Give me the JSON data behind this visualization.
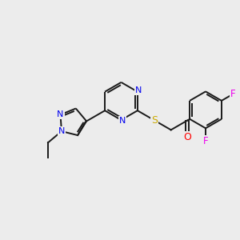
{
  "background_color": "#ececec",
  "bond_color": "#1a1a1a",
  "atom_colors": {
    "N": "#0000ee",
    "O": "#ff0000",
    "S": "#ccaa00",
    "F": "#ee00ee",
    "C": "#1a1a1a"
  },
  "figsize": [
    3.0,
    3.0
  ],
  "dpi": 100
}
